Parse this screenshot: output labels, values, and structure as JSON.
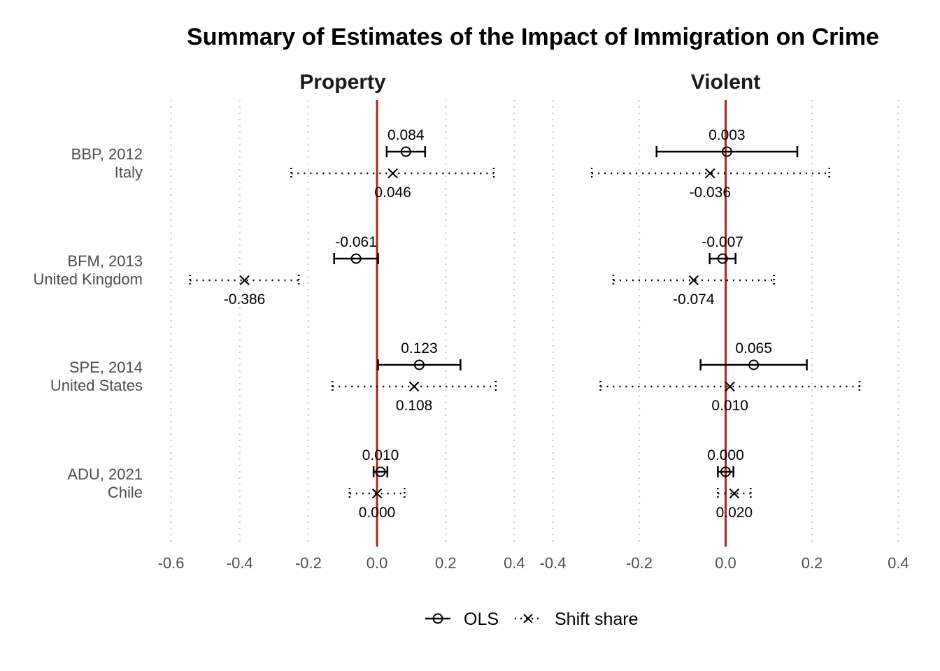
{
  "chart_data": {
    "type": "forest",
    "title": "Summary of Estimates of the Impact of Immigration on Crime",
    "series": [
      {
        "name": "OLS",
        "marker": "circle",
        "line": "solid"
      },
      {
        "name": "Shift share",
        "marker": "cross",
        "line": "dotted"
      }
    ],
    "studies": [
      {
        "name": "BBP, 2012",
        "country": "Italy"
      },
      {
        "name": "BFM, 2013",
        "country": "United Kingdom"
      },
      {
        "name": "SPE, 2014",
        "country": "United States"
      },
      {
        "name": "ADU, 2021",
        "country": "Chile"
      }
    ],
    "panels": [
      {
        "name": "Property",
        "xlim": [
          -0.65,
          0.45
        ],
        "ticks": [
          "-0.6",
          "-0.4",
          "-0.2",
          "0.0",
          "0.2",
          "0.4"
        ],
        "estimates": [
          {
            "study": "BBP, 2012",
            "ols": {
              "value": 0.084,
              "label": "0.084",
              "ci": [
                0.028,
                0.14
              ]
            },
            "ss": {
              "value": 0.046,
              "label": "0.046",
              "ci": [
                -0.25,
                0.34
              ]
            }
          },
          {
            "study": "BFM, 2013",
            "ols": {
              "value": -0.061,
              "label": "-0.061",
              "ci": [
                -0.125,
                0.003
              ]
            },
            "ss": {
              "value": -0.386,
              "label": "-0.386",
              "ci": [
                -0.545,
                -0.228
              ]
            }
          },
          {
            "study": "SPE, 2014",
            "ols": {
              "value": 0.123,
              "label": "0.123",
              "ci": [
                0.003,
                0.243
              ]
            },
            "ss": {
              "value": 0.108,
              "label": "0.108",
              "ci": [
                -0.13,
                0.346
              ]
            }
          },
          {
            "study": "ADU, 2021",
            "ols": {
              "value": 0.01,
              "label": "0.010",
              "ci": [
                -0.01,
                0.03
              ]
            },
            "ss": {
              "value": 0.0,
              "label": "0.000",
              "ci": [
                -0.08,
                0.08
              ]
            }
          }
        ]
      },
      {
        "name": "Violent",
        "xlim": [
          -0.43,
          0.43
        ],
        "ticks": [
          "-0.4",
          "-0.2",
          "0.0",
          "0.2",
          "0.4"
        ],
        "estimates": [
          {
            "study": "BBP, 2012",
            "ols": {
              "value": 0.003,
              "label": "0.003",
              "ci": [
                -0.16,
                0.166
              ]
            },
            "ss": {
              "value": -0.036,
              "label": "-0.036",
              "ci": [
                -0.31,
                0.24
              ]
            }
          },
          {
            "study": "BFM, 2013",
            "ols": {
              "value": -0.007,
              "label": "-0.007",
              "ci": [
                -0.037,
                0.023
              ]
            },
            "ss": {
              "value": -0.074,
              "label": "-0.074",
              "ci": [
                -0.26,
                0.112
              ]
            }
          },
          {
            "study": "SPE, 2014",
            "ols": {
              "value": 0.065,
              "label": "0.065",
              "ci": [
                -0.058,
                0.188
              ]
            },
            "ss": {
              "value": 0.01,
              "label": "0.010",
              "ci": [
                -0.29,
                0.31
              ]
            }
          },
          {
            "study": "ADU, 2021",
            "ols": {
              "value": 0.0,
              "label": "0.000",
              "ci": [
                -0.018,
                0.018
              ]
            },
            "ss": {
              "value": 0.02,
              "label": "0.020",
              "ci": [
                -0.018,
                0.058
              ]
            }
          }
        ]
      }
    ],
    "zero_line_color": "#b22222",
    "legend_position": "bottom"
  }
}
